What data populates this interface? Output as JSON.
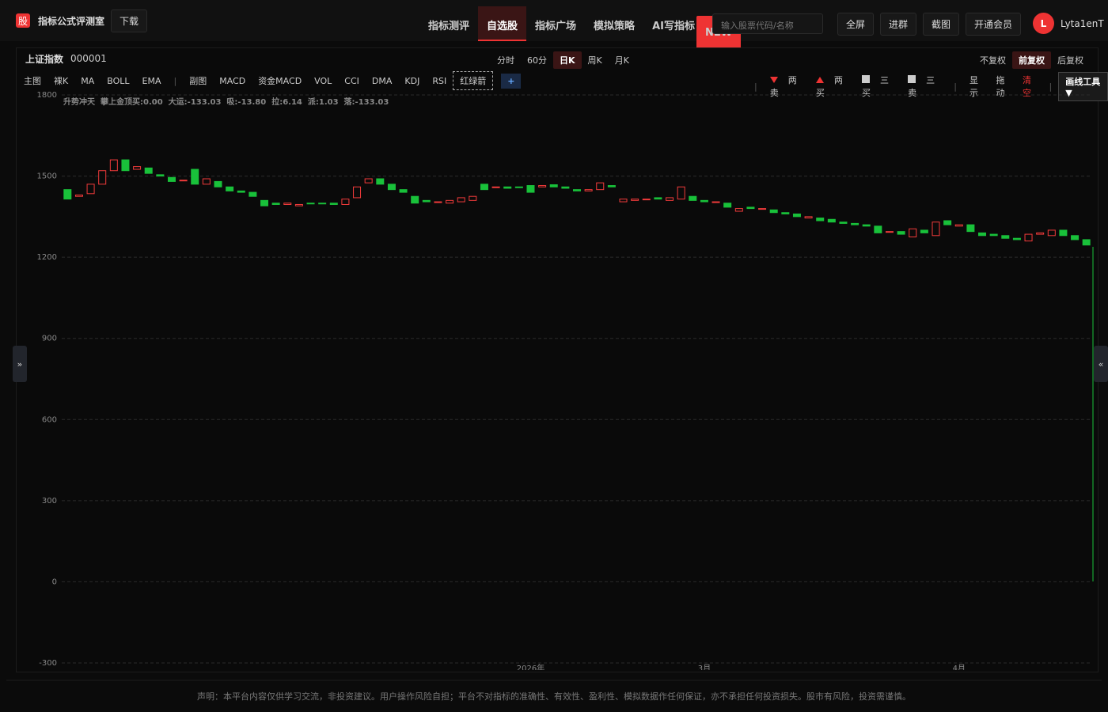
{
  "header": {
    "logo": "股",
    "app_name": "指标公式评测室",
    "download": "下载",
    "nav": [
      "指标测评",
      "自选股",
      "指标广场",
      "模拟策略",
      "AI写指标"
    ],
    "nav_badge": "NEW",
    "search_placeholder": "输入股票代码/名称",
    "buttons": [
      "全屏",
      "进群",
      "截图",
      "开通会员"
    ],
    "avatar": "L",
    "username": "Lyta1enT"
  },
  "stock": {
    "name": "上证指数",
    "code": "000001",
    "periods": [
      "分时",
      "60分",
      "日K",
      "周K",
      "月K"
    ],
    "adjust": [
      "不复权",
      "前复权",
      "后复权"
    ]
  },
  "toolbar": {
    "main": [
      "主图",
      "裸K",
      "MA",
      "BOLL",
      "EMA"
    ],
    "sub": [
      "副图",
      "MACD",
      "资金MACD",
      "VOL",
      "CCI",
      "DMA",
      "KDJ",
      "RSI",
      "红绿箭"
    ],
    "add": "+",
    "signals": [
      "两卖",
      "两买",
      "三买",
      "三卖"
    ],
    "tools": [
      "显示",
      "拖动",
      "清空"
    ],
    "draw_tool": "画线工具 ▼"
  },
  "side_toggles": [
    "»",
    "«"
  ],
  "indicator": [
    {
      "name": "升势冲天",
      "color": "#777777"
    },
    {
      "name": "攀上金顶买:0.00",
      "color": "#1a1aff"
    },
    {
      "name": "大运:-133.03",
      "color": "#dddddd"
    },
    {
      "name": "吸:-13.80",
      "color": "#dddddd"
    },
    {
      "name": "拉:6.14",
      "color": "#e02020"
    },
    {
      "name": "派:1.03",
      "color": "#20d020"
    },
    {
      "name": "落:-133.03",
      "color": "#dddddd"
    }
  ],
  "chart_data": {
    "type": "candlestick",
    "up_color": "#f23b3b",
    "down_color": "#19c13a",
    "grid": true,
    "ylim": [
      -300,
      1800
    ],
    "yticks": [
      1800,
      1500,
      1200,
      900,
      600,
      300,
      0,
      -300
    ],
    "categories": [
      null,
      null,
      null,
      null,
      null,
      null,
      null,
      null,
      null,
      null,
      null,
      null,
      null,
      null,
      null,
      null,
      null,
      null,
      null,
      null,
      null,
      null,
      null,
      null,
      null,
      null,
      null,
      null,
      null,
      null,
      null,
      null,
      null,
      null,
      null,
      null,
      null,
      null,
      null,
      null,
      "2026年",
      null,
      null,
      null,
      null,
      null,
      null,
      null,
      null,
      null,
      null,
      null,
      null,
      null,
      null,
      "3月",
      null,
      null,
      null,
      null,
      null,
      null,
      null,
      null,
      null,
      null,
      null,
      null,
      null,
      null,
      null,
      null,
      null,
      null,
      null,
      null,
      null,
      "4月",
      null,
      null,
      null,
      null,
      null,
      null,
      null,
      null,
      null,
      null,
      null
    ],
    "open": [
      1450,
      1425,
      1435,
      1470,
      1520,
      1560,
      1525,
      1530,
      1505,
      1495,
      1485,
      1525,
      1470,
      1480,
      1460,
      1445,
      1440,
      1410,
      1400,
      1395,
      1390,
      1400,
      1400,
      1400,
      1395,
      1420,
      1475,
      1490,
      1470,
      1450,
      1425,
      1410,
      1405,
      1400,
      1405,
      1410,
      1470,
      1460,
      1460,
      1460,
      1465,
      1460,
      1468,
      1460,
      1450,
      1445,
      1450,
      1465,
      1405,
      1410,
      1415,
      1420,
      1410,
      1415,
      1425,
      1410,
      1405,
      1400,
      1370,
      1385,
      1380,
      1375,
      1365,
      1360,
      1345,
      1345,
      1340,
      1330,
      1325,
      1320,
      1315,
      1295,
      1295,
      1275,
      1300,
      1280,
      1335,
      1315,
      1320,
      1290,
      1285,
      1280,
      1270,
      1260,
      1285,
      1280,
      1300,
      1280,
      1265
    ],
    "close": [
      1415,
      1430,
      1470,
      1520,
      1560,
      1520,
      1535,
      1510,
      1500,
      1480,
      1485,
      1470,
      1490,
      1460,
      1445,
      1440,
      1425,
      1390,
      1395,
      1400,
      1395,
      1398,
      1398,
      1395,
      1415,
      1460,
      1490,
      1470,
      1450,
      1440,
      1400,
      1405,
      1405,
      1410,
      1420,
      1425,
      1450,
      1460,
      1455,
      1458,
      1440,
      1465,
      1460,
      1455,
      1445,
      1450,
      1475,
      1460,
      1415,
      1415,
      1415,
      1415,
      1420,
      1460,
      1410,
      1405,
      1405,
      1385,
      1380,
      1380,
      1380,
      1365,
      1360,
      1350,
      1350,
      1335,
      1330,
      1325,
      1320,
      1315,
      1290,
      1295,
      1285,
      1305,
      1290,
      1330,
      1320,
      1320,
      1295,
      1280,
      1280,
      1270,
      1265,
      1285,
      1290,
      1300,
      1280,
      1265,
      1245
    ]
  },
  "footer": "声明：本平台内容仅供学习交流，非投资建议。用户操作风险自担；平台不对指标的准确性、有效性、盈利性、模拟数据作任何保证，亦不承担任何投资损失。股市有风险，投资需谨慎。"
}
